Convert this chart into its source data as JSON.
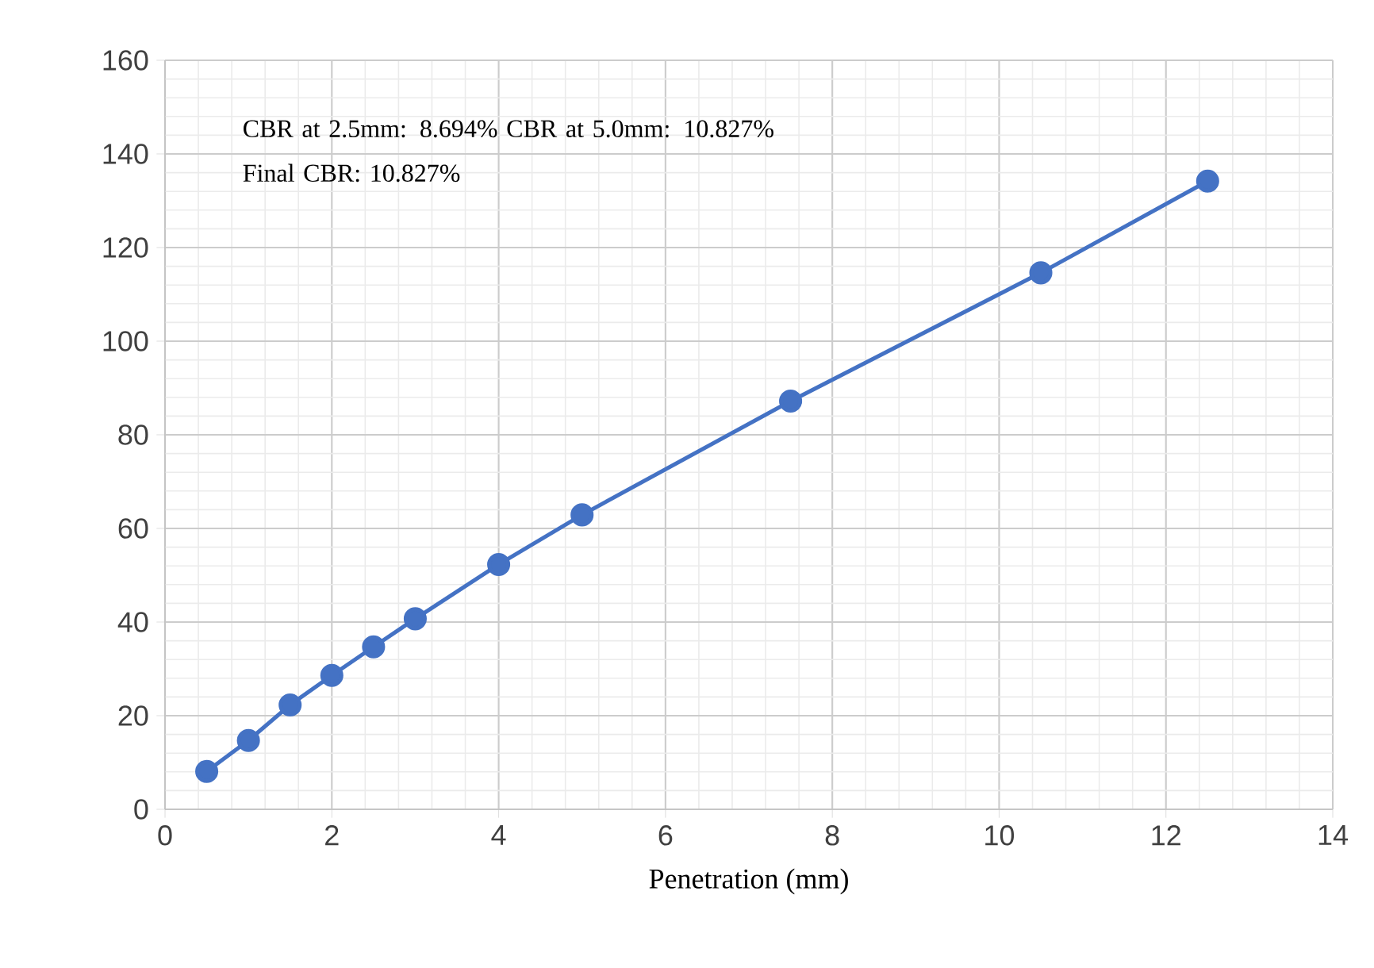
{
  "chart_data": {
    "type": "line",
    "xlabel": "Penetration (mm)",
    "x": [
      0.5,
      1,
      1.5,
      2,
      2.5,
      3,
      4,
      5,
      7.5,
      10.5,
      12.5
    ],
    "series": [
      {
        "color": "#4472c4",
        "values": [
          8.1,
          14.7,
          22.3,
          28.6,
          34.7,
          40.7,
          52.3,
          62.9,
          87.2,
          114.6,
          134.2
        ]
      }
    ],
    "xlim": [
      0,
      14
    ],
    "ylim": [
      0,
      160
    ],
    "xticks": [
      0,
      2,
      4,
      6,
      8,
      10,
      12,
      14
    ],
    "yticks": [
      0,
      20,
      40,
      60,
      80,
      100,
      120,
      140,
      160
    ],
    "grid": true,
    "marker": "circle",
    "line_style": "solid",
    "annotations": [
      "CBR at 2.5mm: 8.694% CBR at 5.0mm: 10.827% Final CBR: 10.827%"
    ]
  }
}
